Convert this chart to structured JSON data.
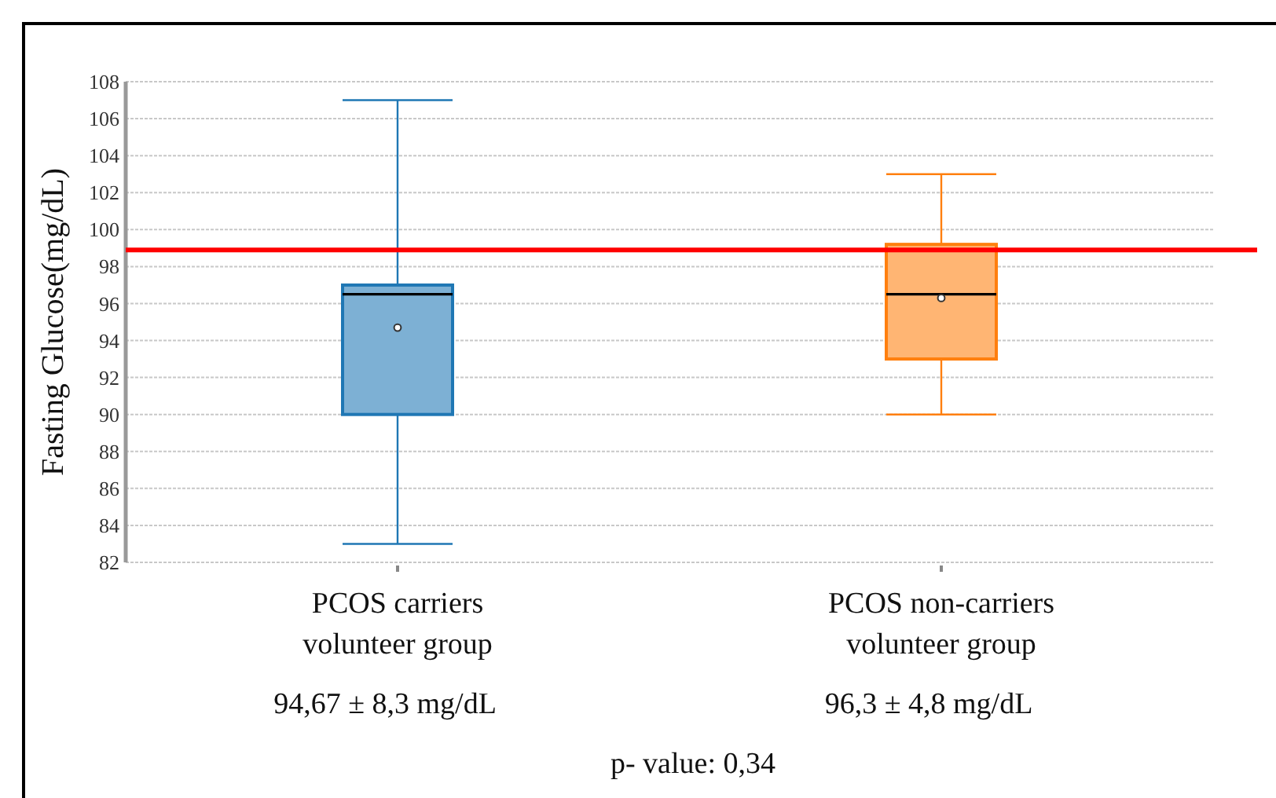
{
  "chart_data": {
    "type": "box",
    "ylabel": "Fasting Glucose(mg/dL)",
    "categories": [
      "PCOS carriers\nvolunteer group",
      "PCOS non-carriers\nvolunteer group"
    ],
    "boxes": [
      {
        "low": 83,
        "q1": 90,
        "median": 96.5,
        "q3": 97,
        "high": 107,
        "mean": 94.7
      },
      {
        "low": 90,
        "q1": 93,
        "median": 96.5,
        "q3": 99.2,
        "high": 103,
        "mean": 96.3
      }
    ],
    "colors": [
      "#1f77b4",
      "#ff7f0e"
    ],
    "ylim": [
      82,
      108
    ],
    "yticks": [
      82,
      84,
      86,
      88,
      90,
      92,
      94,
      96,
      98,
      100,
      102,
      104,
      106,
      108
    ],
    "grid": "y",
    "ref_lines": [
      {
        "axis": "y",
        "value": 98.9,
        "color": "#ff0000"
      }
    ],
    "annotations": [
      "94,67 ± 8,3 mg/dL",
      "96,3 ± 4,8 mg/dL",
      "p- value: 0,34"
    ]
  }
}
